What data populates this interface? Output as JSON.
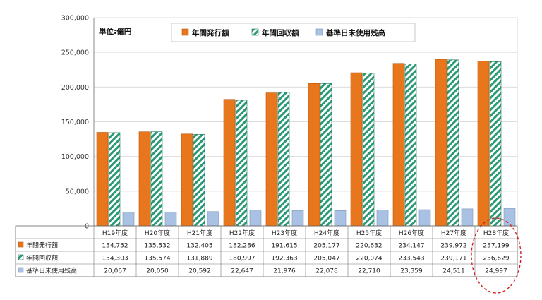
{
  "chart_data": {
    "type": "bar",
    "unit_label": "単位:億円",
    "ylim": [
      0,
      300000
    ],
    "y_ticks": [
      "300,000",
      "250,000",
      "200,000",
      "150,000",
      "100,000",
      "50,000",
      "0"
    ],
    "categories": [
      "H19年度",
      "H20年度",
      "H21年度",
      "H22年度",
      "H23年度",
      "H24年度",
      "H25年度",
      "H26年度",
      "H27年度",
      "H28年度"
    ],
    "series": [
      {
        "name": "年間発行額",
        "color": "#e8761c",
        "values": [
          134752,
          135532,
          132405,
          182286,
          191615,
          205177,
          220632,
          234147,
          239972,
          237199
        ],
        "labels": [
          "134,752",
          "135,532",
          "132,405",
          "182,286",
          "191,615",
          "205,177",
          "220,632",
          "234,147",
          "239,972",
          "237,199"
        ]
      },
      {
        "name": "年間回収額",
        "color": "#2a9a76",
        "values": [
          134303,
          135574,
          131889,
          180997,
          192363,
          205047,
          220074,
          233543,
          239171,
          236629
        ],
        "labels": [
          "134,303",
          "135,574",
          "131,889",
          "180,997",
          "192,363",
          "205,047",
          "220,074",
          "233,543",
          "239,171",
          "236,629"
        ]
      },
      {
        "name": "基準日未使用残高",
        "color": "#a9c1e2",
        "values": [
          20067,
          20050,
          20592,
          22647,
          21976,
          22078,
          22710,
          23359,
          24511,
          24997
        ],
        "labels": [
          "20,067",
          "20,050",
          "20,592",
          "22,647",
          "21,976",
          "22,078",
          "22,710",
          "23,359",
          "24,511",
          "24,997"
        ]
      }
    ],
    "grid": true,
    "legend_position": "top",
    "highlight": "dashed red ellipse around H28年度 column"
  }
}
